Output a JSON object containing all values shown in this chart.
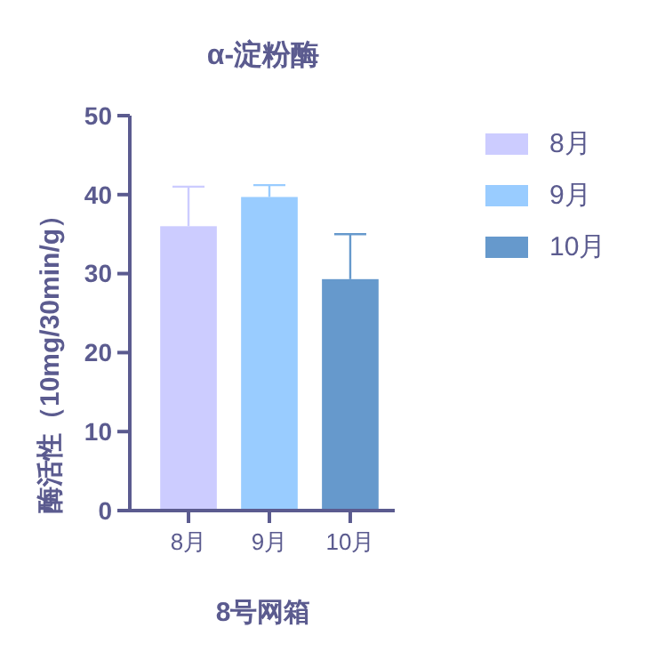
{
  "chart_data": {
    "type": "bar",
    "title": "α-淀粉酶",
    "xlabel": "8号网箱",
    "ylabel": "酶活性（10mg/30min/g）",
    "categories": [
      "8月",
      "9月",
      "10月"
    ],
    "series": [
      {
        "name": "8月",
        "color": "#ccccff",
        "values": [
          36,
          null,
          null
        ],
        "errors": [
          [
            36,
            41
          ],
          null,
          null
        ]
      },
      {
        "name": "9月",
        "color": "#99ccff",
        "values": [
          null,
          39.7,
          null
        ],
        "errors": [
          null,
          [
            39.7,
            41.2
          ],
          null
        ]
      },
      {
        "name": "10月",
        "color": "#6699cc",
        "values": [
          null,
          null,
          29.3
        ],
        "errors": [
          null,
          null,
          [
            29.3,
            35
          ]
        ]
      }
    ],
    "ylim": [
      0,
      50
    ],
    "yticks": [
      0,
      10,
      20,
      30,
      40,
      50
    ],
    "grid": false,
    "legend": "right"
  }
}
